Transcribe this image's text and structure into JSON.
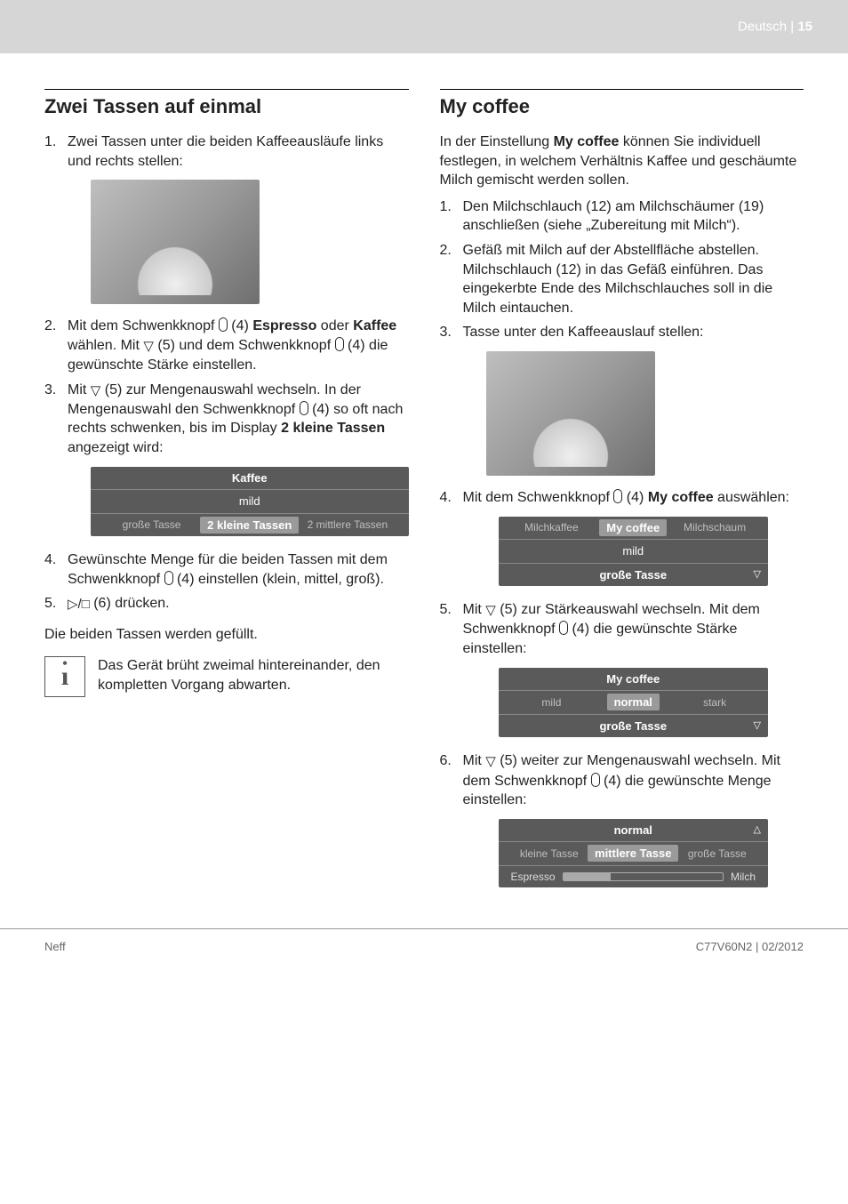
{
  "header": {
    "lang": "Deutsch",
    "page": "15",
    "sep": " | "
  },
  "left": {
    "h2": "Zwei Tassen auf einmal",
    "li1": "Zwei Tassen unter die beiden Kaffee­ausläufe links und rechts stellen:",
    "li2a": "Mit dem Schwenkknopf ",
    "li2b": " (4) ",
    "li2_espresso": "Espresso",
    "li2c": " oder ",
    "li2_kaffee": "Kaffee",
    "li2d": " wählen. Mit ",
    "li2_tri": "▽",
    "li2e": " (5) und dem Schwenkknopf ",
    "li2f": " (4) die gewünschte Stärke einstellen.",
    "li3a": "Mit ",
    "li3_tri": "▽",
    "li3b": " (5) zur Mengenauswahl wechseln. In der Mengenauswahl den Schwenk­knopf ",
    "li3c": " (4) so oft nach rechts schwen­ken, bis im Display ",
    "li3_label": "2 kleine Tassen",
    "li3d": " angezeigt wird:",
    "disp1": {
      "r1": "Kaffee",
      "r2": "mild",
      "r3a": "große Tasse",
      "r3b": "2 kleine Tassen",
      "r3c": "2 mittlere Tassen"
    },
    "li4a": "Gewünschte Menge für die beiden Tassen mit dem Schwenkknopf ",
    "li4b": " (4) einstellen (klein, mittel, groß).",
    "li5a": "▷/□",
    "li5b": " (6) drücken.",
    "after": "Die beiden Tassen werden gefüllt.",
    "info": "Das Gerät brüht zweimal hinter­einander, den kompletten Vorgang abwarten."
  },
  "right": {
    "h2": "My coffee",
    "intro_a": "In der Einstellung ",
    "intro_b": "My coffee",
    "intro_c": " können Sie individuell festlegen, in welchem Verhältnis Kaffee und geschäumte Milch gemischt wer­den sollen.",
    "li1": "Den Milchschlauch (12) am Milch­schäumer (19) anschließen (siehe „Zubereitung mit Milch“).",
    "li2": "Gefäß mit Milch auf der Abstellfläche abstellen. Milchschlauch (12) in das Gefäß einführen. Das eingekerbte Ende des Milchschlauches soll in die Milch eintauchen.",
    "li3": "Tasse unter den Kaffeeauslauf stellen:",
    "li4a": "Mit dem Schwenkknopf ",
    "li4b": " (4) ",
    "li4c": "My coffee",
    "li4d": " auswählen:",
    "disp2": {
      "r1a": "Milchkaffee",
      "r1b": "My coffee",
      "r1c": "Milchschaum",
      "r2": "mild",
      "r3": "große Tasse"
    },
    "li5a": "Mit ",
    "li5_tri": "▽",
    "li5b": " (5) zur Stärkeauswahl wechseln. Mit dem Schwenkknopf ",
    "li5c": " (4) die gewünschte Stärke einstellen:",
    "disp3": {
      "r1": "My coffee",
      "r2a": "mild",
      "r2b": "normal",
      "r2c": "stark",
      "r3": "große Tasse"
    },
    "li6a": "Mit ",
    "li6_tri": "▽",
    "li6b": " (5) weiter zur Mengenauswahl wechseln. Mit dem Schwenkknopf ",
    "li6c": " (4) die gewünschte Menge einstellen:",
    "disp4": {
      "r1": "normal",
      "r2a": "kleine Tasse",
      "r2b": "mittlere Tasse",
      "r2c": "große Tasse",
      "r3l": "Espresso",
      "r3r": "Milch",
      "fill": "30%"
    }
  },
  "footer": {
    "left": "Neff",
    "right": "C77V60N2 | 02/2012"
  }
}
